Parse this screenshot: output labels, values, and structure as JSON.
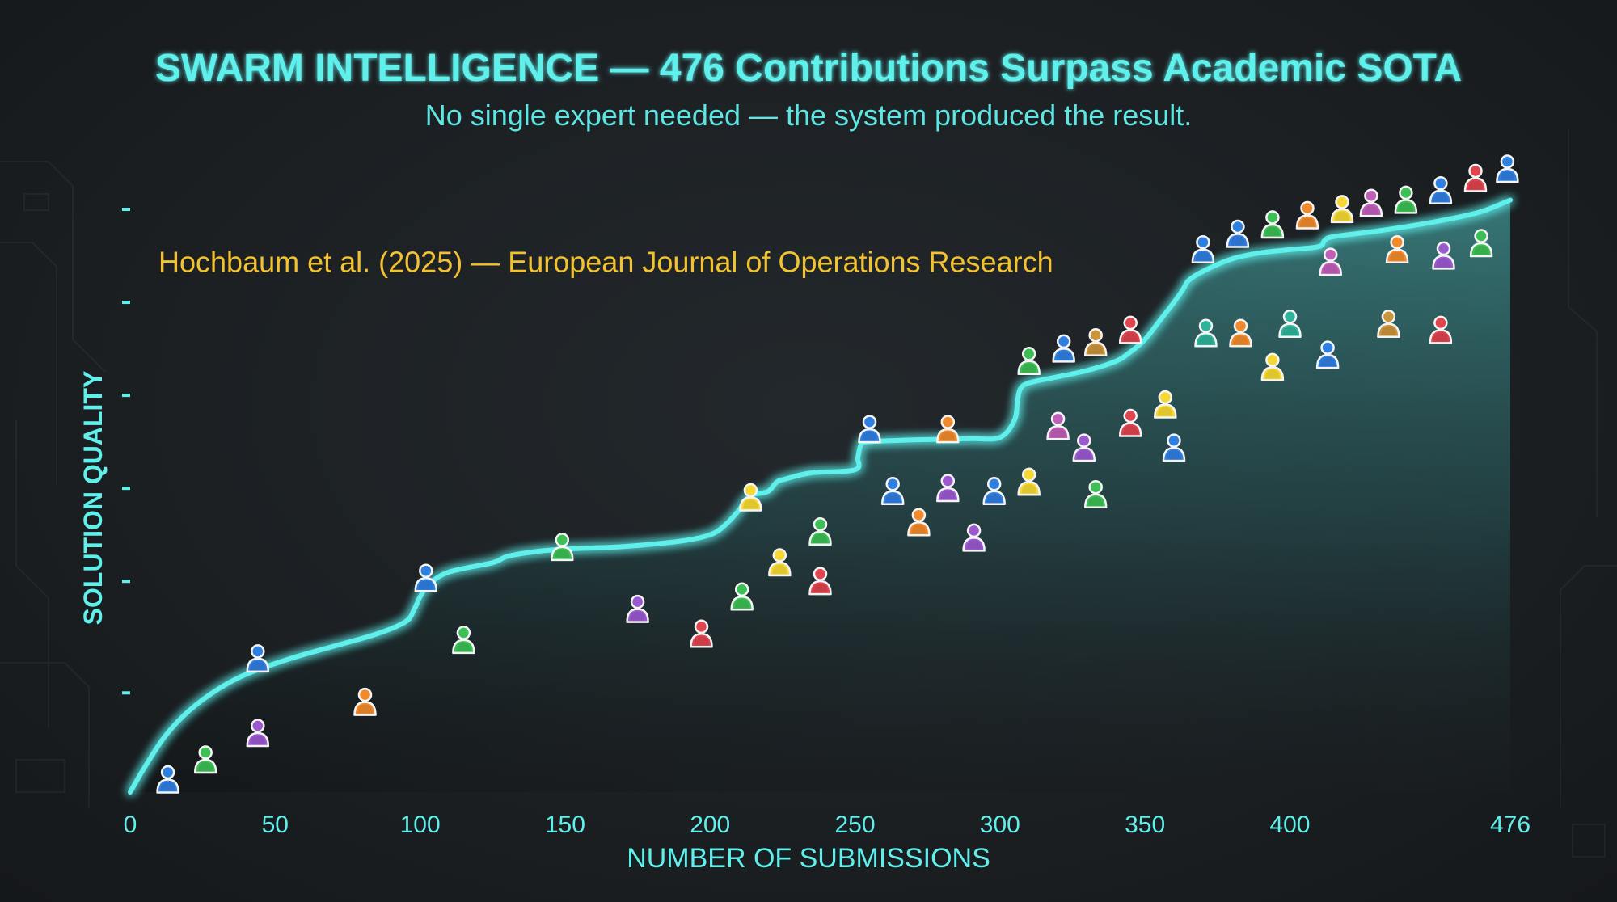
{
  "title": "SWARM INTELLIGENCE — 476 Contributions Surpass Academic SOTA",
  "subtitle": "No single expert needed — the system produced the result.",
  "colors": {
    "accent": "#5ff0ec",
    "reference": "#f2c230",
    "person_blue": "#2f7fe0",
    "person_green": "#3cbf55",
    "person_purple": "#9b59d0",
    "person_orange": "#f08a2c",
    "person_red": "#e0444e",
    "person_yellow": "#f5d833",
    "person_teal": "#2fb39a",
    "person_pink": "#c05fb8",
    "person_tan": "#c9943a"
  },
  "chart_data": {
    "type": "area",
    "title": "SWARM INTELLIGENCE — 476 Contributions Surpass Academic SOTA",
    "subtitle": "No single expert needed — the system produced the result.",
    "xlabel": "NUMBER OF SUBMISSIONS",
    "ylabel": "SOLUTION QUALITY",
    "xlim": [
      0,
      476
    ],
    "ylim": [
      0,
      100
    ],
    "x_ticks": [
      0,
      50,
      100,
      150,
      200,
      250,
      300,
      350,
      400,
      476
    ],
    "x_tick_labels": [
      "0",
      "50",
      "100",
      "150",
      "200",
      "250",
      "300",
      "350",
      "400",
      "476"
    ],
    "y_ticks": [
      16,
      34,
      49,
      64,
      79,
      94
    ],
    "y_tick_labels_shown": false,
    "grid": false,
    "reference_line": {
      "label": "Hochbaum et al. (2025) — European Journal of Operations Research",
      "y": 81,
      "style": "dashed"
    },
    "curve": {
      "x": [
        0,
        5,
        12,
        20,
        30,
        40,
        55,
        70,
        85,
        95,
        98,
        100,
        103,
        110,
        125,
        130,
        140,
        150,
        170,
        190,
        200,
        205,
        210,
        212,
        215,
        220,
        223,
        226,
        235,
        250,
        251,
        252,
        254,
        270,
        290,
        300,
        305,
        306,
        307,
        310,
        320,
        330,
        340,
        345,
        350,
        355,
        360,
        363,
        365,
        370,
        380,
        390,
        400,
        410,
        412,
        415,
        430,
        450,
        465,
        476
      ],
      "y": [
        0,
        4,
        9,
        13,
        16.5,
        19,
        21.5,
        23.5,
        25.5,
        27.5,
        29.5,
        31.5,
        33.5,
        35.5,
        37,
        38,
        38.8,
        39.2,
        39.6,
        40.5,
        41.5,
        43,
        45.5,
        47,
        48,
        48.5,
        50,
        50.5,
        51.5,
        52,
        54,
        56,
        56.5,
        56.8,
        57,
        57.2,
        60,
        63,
        65,
        66,
        67,
        68,
        69.5,
        71,
        73,
        76,
        79,
        81,
        82.5,
        84,
        86,
        87,
        87.5,
        88,
        89,
        89.6,
        90.5,
        92,
        93.5,
        95.5
      ]
    },
    "contributors": [
      {
        "x": 13,
        "y": 1.5,
        "color": "#2f7fe0"
      },
      {
        "x": 26,
        "y": 4.7,
        "color": "#3cbf55"
      },
      {
        "x": 44,
        "y": 9,
        "color": "#9b59d0"
      },
      {
        "x": 44,
        "y": 21,
        "color": "#2f7fe0"
      },
      {
        "x": 81,
        "y": 14,
        "color": "#f08a2c"
      },
      {
        "x": 102,
        "y": 34,
        "color": "#2f7fe0"
      },
      {
        "x": 115,
        "y": 24,
        "color": "#3cbf55"
      },
      {
        "x": 149,
        "y": 39,
        "color": "#3cbf55"
      },
      {
        "x": 175,
        "y": 29,
        "color": "#9b59d0"
      },
      {
        "x": 197,
        "y": 25,
        "color": "#e0444e"
      },
      {
        "x": 211,
        "y": 31,
        "color": "#3cbf55"
      },
      {
        "x": 214,
        "y": 47,
        "color": "#f5d833"
      },
      {
        "x": 224,
        "y": 36.5,
        "color": "#f5d833"
      },
      {
        "x": 238,
        "y": 41.5,
        "color": "#3cbf55"
      },
      {
        "x": 238,
        "y": 33.5,
        "color": "#e0444e"
      },
      {
        "x": 255,
        "y": 58,
        "color": "#2f7fe0"
      },
      {
        "x": 263,
        "y": 48,
        "color": "#2f7fe0"
      },
      {
        "x": 272,
        "y": 43,
        "color": "#f08a2c"
      },
      {
        "x": 282,
        "y": 58,
        "color": "#f08a2c"
      },
      {
        "x": 282,
        "y": 48.5,
        "color": "#9b59d0"
      },
      {
        "x": 291,
        "y": 40.5,
        "color": "#9b59d0"
      },
      {
        "x": 298,
        "y": 48,
        "color": "#2f7fe0"
      },
      {
        "x": 310,
        "y": 49.5,
        "color": "#f5d833"
      },
      {
        "x": 310,
        "y": 69,
        "color": "#3cbf55"
      },
      {
        "x": 320,
        "y": 58.5,
        "color": "#c05fb8"
      },
      {
        "x": 322,
        "y": 71,
        "color": "#2f7fe0"
      },
      {
        "x": 329,
        "y": 55,
        "color": "#9b59d0"
      },
      {
        "x": 333,
        "y": 47.5,
        "color": "#3cbf55"
      },
      {
        "x": 333,
        "y": 72,
        "color": "#c9943a"
      },
      {
        "x": 345,
        "y": 59,
        "color": "#e0444e"
      },
      {
        "x": 345,
        "y": 74,
        "color": "#e0444e"
      },
      {
        "x": 357,
        "y": 62,
        "color": "#f5d833"
      },
      {
        "x": 360,
        "y": 55,
        "color": "#2f7fe0"
      },
      {
        "x": 370,
        "y": 87,
        "color": "#2f7fe0"
      },
      {
        "x": 371,
        "y": 73.5,
        "color": "#2fb39a"
      },
      {
        "x": 382,
        "y": 89.5,
        "color": "#2f7fe0"
      },
      {
        "x": 383,
        "y": 73.5,
        "color": "#f08a2c"
      },
      {
        "x": 394,
        "y": 68,
        "color": "#f5d833"
      },
      {
        "x": 394,
        "y": 91,
        "color": "#3cbf55"
      },
      {
        "x": 400,
        "y": 75,
        "color": "#2fb39a"
      },
      {
        "x": 406,
        "y": 92.5,
        "color": "#f08a2c"
      },
      {
        "x": 413,
        "y": 70,
        "color": "#2f7fe0"
      },
      {
        "x": 414,
        "y": 85,
        "color": "#c05fb8"
      },
      {
        "x": 418,
        "y": 93.5,
        "color": "#f5d833"
      },
      {
        "x": 428,
        "y": 94.5,
        "color": "#c05fb8"
      },
      {
        "x": 434,
        "y": 75,
        "color": "#c9943a"
      },
      {
        "x": 437,
        "y": 87,
        "color": "#f08a2c"
      },
      {
        "x": 440,
        "y": 95,
        "color": "#3cbf55"
      },
      {
        "x": 452,
        "y": 74,
        "color": "#e0444e"
      },
      {
        "x": 452,
        "y": 96.5,
        "color": "#2f7fe0"
      },
      {
        "x": 453,
        "y": 86,
        "color": "#9b59d0"
      },
      {
        "x": 464,
        "y": 98.5,
        "color": "#e0444e"
      },
      {
        "x": 466,
        "y": 88,
        "color": "#3cbf55"
      },
      {
        "x": 475,
        "y": 100,
        "color": "#2f7fe0"
      }
    ]
  }
}
